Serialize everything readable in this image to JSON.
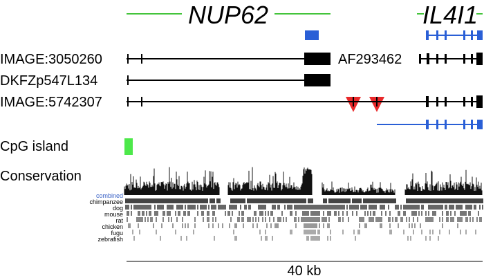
{
  "genes": {
    "nup62": "NUP62",
    "il4i1": "IL4I1"
  },
  "tracks": {
    "image1": "IMAGE:3050260",
    "dkfz": "DKFZp547L134",
    "image2": "IMAGE:5742307",
    "af": "AF293462"
  },
  "cpg_label": "CpG island",
  "conservation": {
    "title": "Conservation",
    "combined": "combined",
    "species": [
      "chimpanzee",
      "dog",
      "mouse",
      "rat",
      "chicken",
      "fugu",
      "zebrafish"
    ]
  },
  "scale_label": "40 kb",
  "colors": {
    "gene_line": "#44c43b",
    "blue": "#2a5fd6",
    "red_marker": "#e8282a",
    "cpg": "#4de84a",
    "combined_text": "#3a62c6"
  }
}
